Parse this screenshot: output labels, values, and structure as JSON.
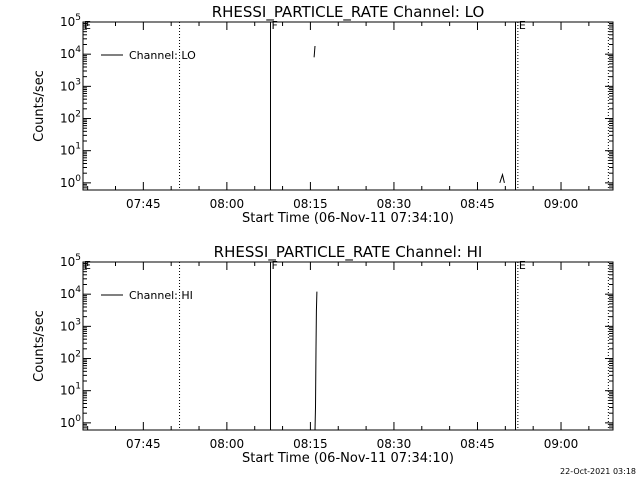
{
  "footer": {
    "timestamp": "22-Oct-2021 03:18"
  },
  "chart_data": [
    {
      "type": "line",
      "title": "RHESSI_PARTICLE_RATE Channel: LO",
      "xlabel": "Start Time (06-Nov-11 07:34:10)",
      "ylabel": "Counts/sec",
      "log_y": true,
      "ylim": [
        0.6,
        100000
      ],
      "xlim": [
        "07:34:10",
        "09:09:20"
      ],
      "x_ticks": [
        "07:45",
        "08:00",
        "08:15",
        "08:30",
        "08:45",
        "09:00"
      ],
      "y_ticks": [
        {
          "label": "10",
          "exp": "0",
          "value": 1
        },
        {
          "label": "10",
          "exp": "1",
          "value": 10
        },
        {
          "label": "10",
          "exp": "2",
          "value": 100
        },
        {
          "label": "10",
          "exp": "3",
          "value": 1000
        },
        {
          "label": "10",
          "exp": "4",
          "value": 10000
        },
        {
          "label": "10",
          "exp": "5",
          "value": 100000
        }
      ],
      "legend": {
        "position": "top-left",
        "entries": [
          "Channel: LO"
        ]
      },
      "markers": [
        {
          "label": "",
          "time": "07:51:30",
          "style": "dotted"
        },
        {
          "label": "F",
          "time": "08:07:50",
          "style": "solid"
        },
        {
          "label": "E",
          "time": "08:52:15",
          "style": "dotted"
        },
        {
          "label": "",
          "time": "09:08:30",
          "style": "dotted"
        }
      ],
      "edge_labels": {
        "left_top": "E"
      },
      "series": [
        {
          "name": "Channel: LO",
          "segments": [
            [
              [
                "08:15:40",
                8000
              ],
              [
                "08:15:50",
                18000
              ]
            ],
            [
              [
                "08:49:00",
                1
              ],
              [
                "08:49:30",
                1.8
              ],
              [
                "08:49:50",
                1
              ]
            ],
            [
              [
                "08:51:50",
                0.6
              ],
              [
                "08:51:50",
                100000
              ]
            ]
          ]
        }
      ]
    },
    {
      "type": "line",
      "title": "RHESSI_PARTICLE_RATE Channel: HI",
      "xlabel": "Start Time (06-Nov-11 07:34:10)",
      "ylabel": "Counts/sec",
      "log_y": true,
      "ylim": [
        0.6,
        100000
      ],
      "xlim": [
        "07:34:10",
        "09:09:20"
      ],
      "x_ticks": [
        "07:45",
        "08:00",
        "08:15",
        "08:30",
        "08:45",
        "09:00"
      ],
      "y_ticks": [
        {
          "label": "10",
          "exp": "0",
          "value": 1
        },
        {
          "label": "10",
          "exp": "1",
          "value": 10
        },
        {
          "label": "10",
          "exp": "2",
          "value": 100
        },
        {
          "label": "10",
          "exp": "3",
          "value": 1000
        },
        {
          "label": "10",
          "exp": "4",
          "value": 10000
        },
        {
          "label": "10",
          "exp": "5",
          "value": 100000
        }
      ],
      "legend": {
        "position": "top-left",
        "entries": [
          "Channel: HI"
        ]
      },
      "markers": [
        {
          "label": "",
          "time": "07:51:30",
          "style": "dotted"
        },
        {
          "label": "F",
          "time": "08:07:50",
          "style": "solid"
        },
        {
          "label": "E",
          "time": "08:52:15",
          "style": "dotted"
        },
        {
          "label": "",
          "time": "09:08:30",
          "style": "dotted"
        }
      ],
      "edge_labels": {
        "left_top": "E"
      },
      "series": [
        {
          "name": "Channel: HI",
          "segments": [
            [
              [
                "08:15:50",
                0.6
              ],
              [
                "08:15:55",
                3
              ],
              [
                "08:16:00",
                200
              ],
              [
                "08:16:05",
                3000
              ],
              [
                "08:16:10",
                12000
              ]
            ],
            [
              [
                "08:51:50",
                0.6
              ],
              [
                "08:51:50",
                100000
              ]
            ]
          ]
        }
      ]
    }
  ]
}
